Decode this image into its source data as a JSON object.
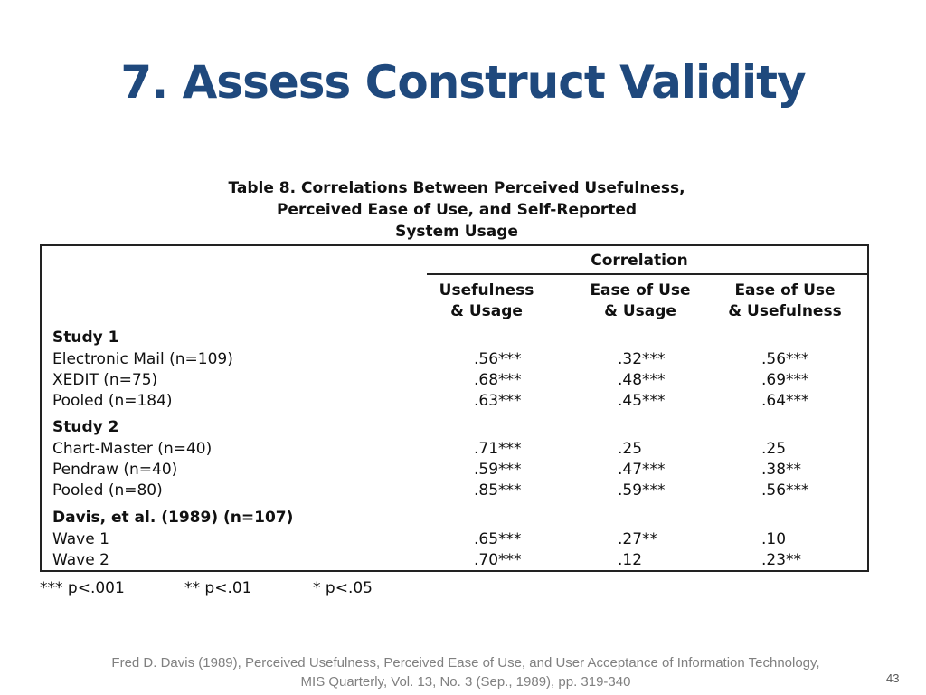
{
  "slide": {
    "title": "7. Assess Construct Validity",
    "page_number": "43"
  },
  "table": {
    "caption": [
      "Table 8. Correlations Between Perceived Usefulness,",
      "Perceived Ease of Use, and Self-Reported",
      "System Usage"
    ],
    "correlation_header": "Correlation",
    "columns": [
      [
        "Usefulness",
        "& Usage"
      ],
      [
        "Ease of Use",
        "& Usage"
      ],
      [
        "Ease of Use",
        "& Usefulness"
      ]
    ],
    "groups": [
      {
        "label": "Study 1",
        "rows": [
          {
            "label": "Electronic Mail (n=109)",
            "values": [
              ".56***",
              ".32***",
              ".56***"
            ]
          },
          {
            "label": "XEDIT (n=75)",
            "values": [
              ".68***",
              ".48***",
              ".69***"
            ]
          },
          {
            "label": "Pooled (n=184)",
            "values": [
              ".63***",
              ".45***",
              ".64***"
            ]
          }
        ]
      },
      {
        "label": "Study 2",
        "rows": [
          {
            "label": "Chart-Master (n=40)",
            "values": [
              ".71***",
              ".25",
              ".25"
            ]
          },
          {
            "label": "Pendraw (n=40)",
            "values": [
              ".59***",
              ".47***",
              ".38**"
            ]
          },
          {
            "label": "Pooled (n=80)",
            "values": [
              ".85***",
              ".59***",
              ".56***"
            ]
          }
        ]
      },
      {
        "label": "Davis, et al. (1989) (n=107)",
        "rows": [
          {
            "label": "Wave 1",
            "values": [
              ".65***",
              ".27**",
              ".10"
            ]
          },
          {
            "label": "Wave 2",
            "values": [
              ".70***",
              ".12",
              ".23**"
            ]
          }
        ]
      }
    ],
    "footnotes": [
      "*** p<.001",
      "** p<.01",
      "* p<.05"
    ]
  },
  "citation": {
    "line1": "Fred D. Davis (1989), Perceived Usefulness, Perceived Ease of Use, and User Acceptance of Information Technology,",
    "line2": "MIS Quarterly, Vol. 13, No. 3 (Sep., 1989), pp. 319-340"
  }
}
